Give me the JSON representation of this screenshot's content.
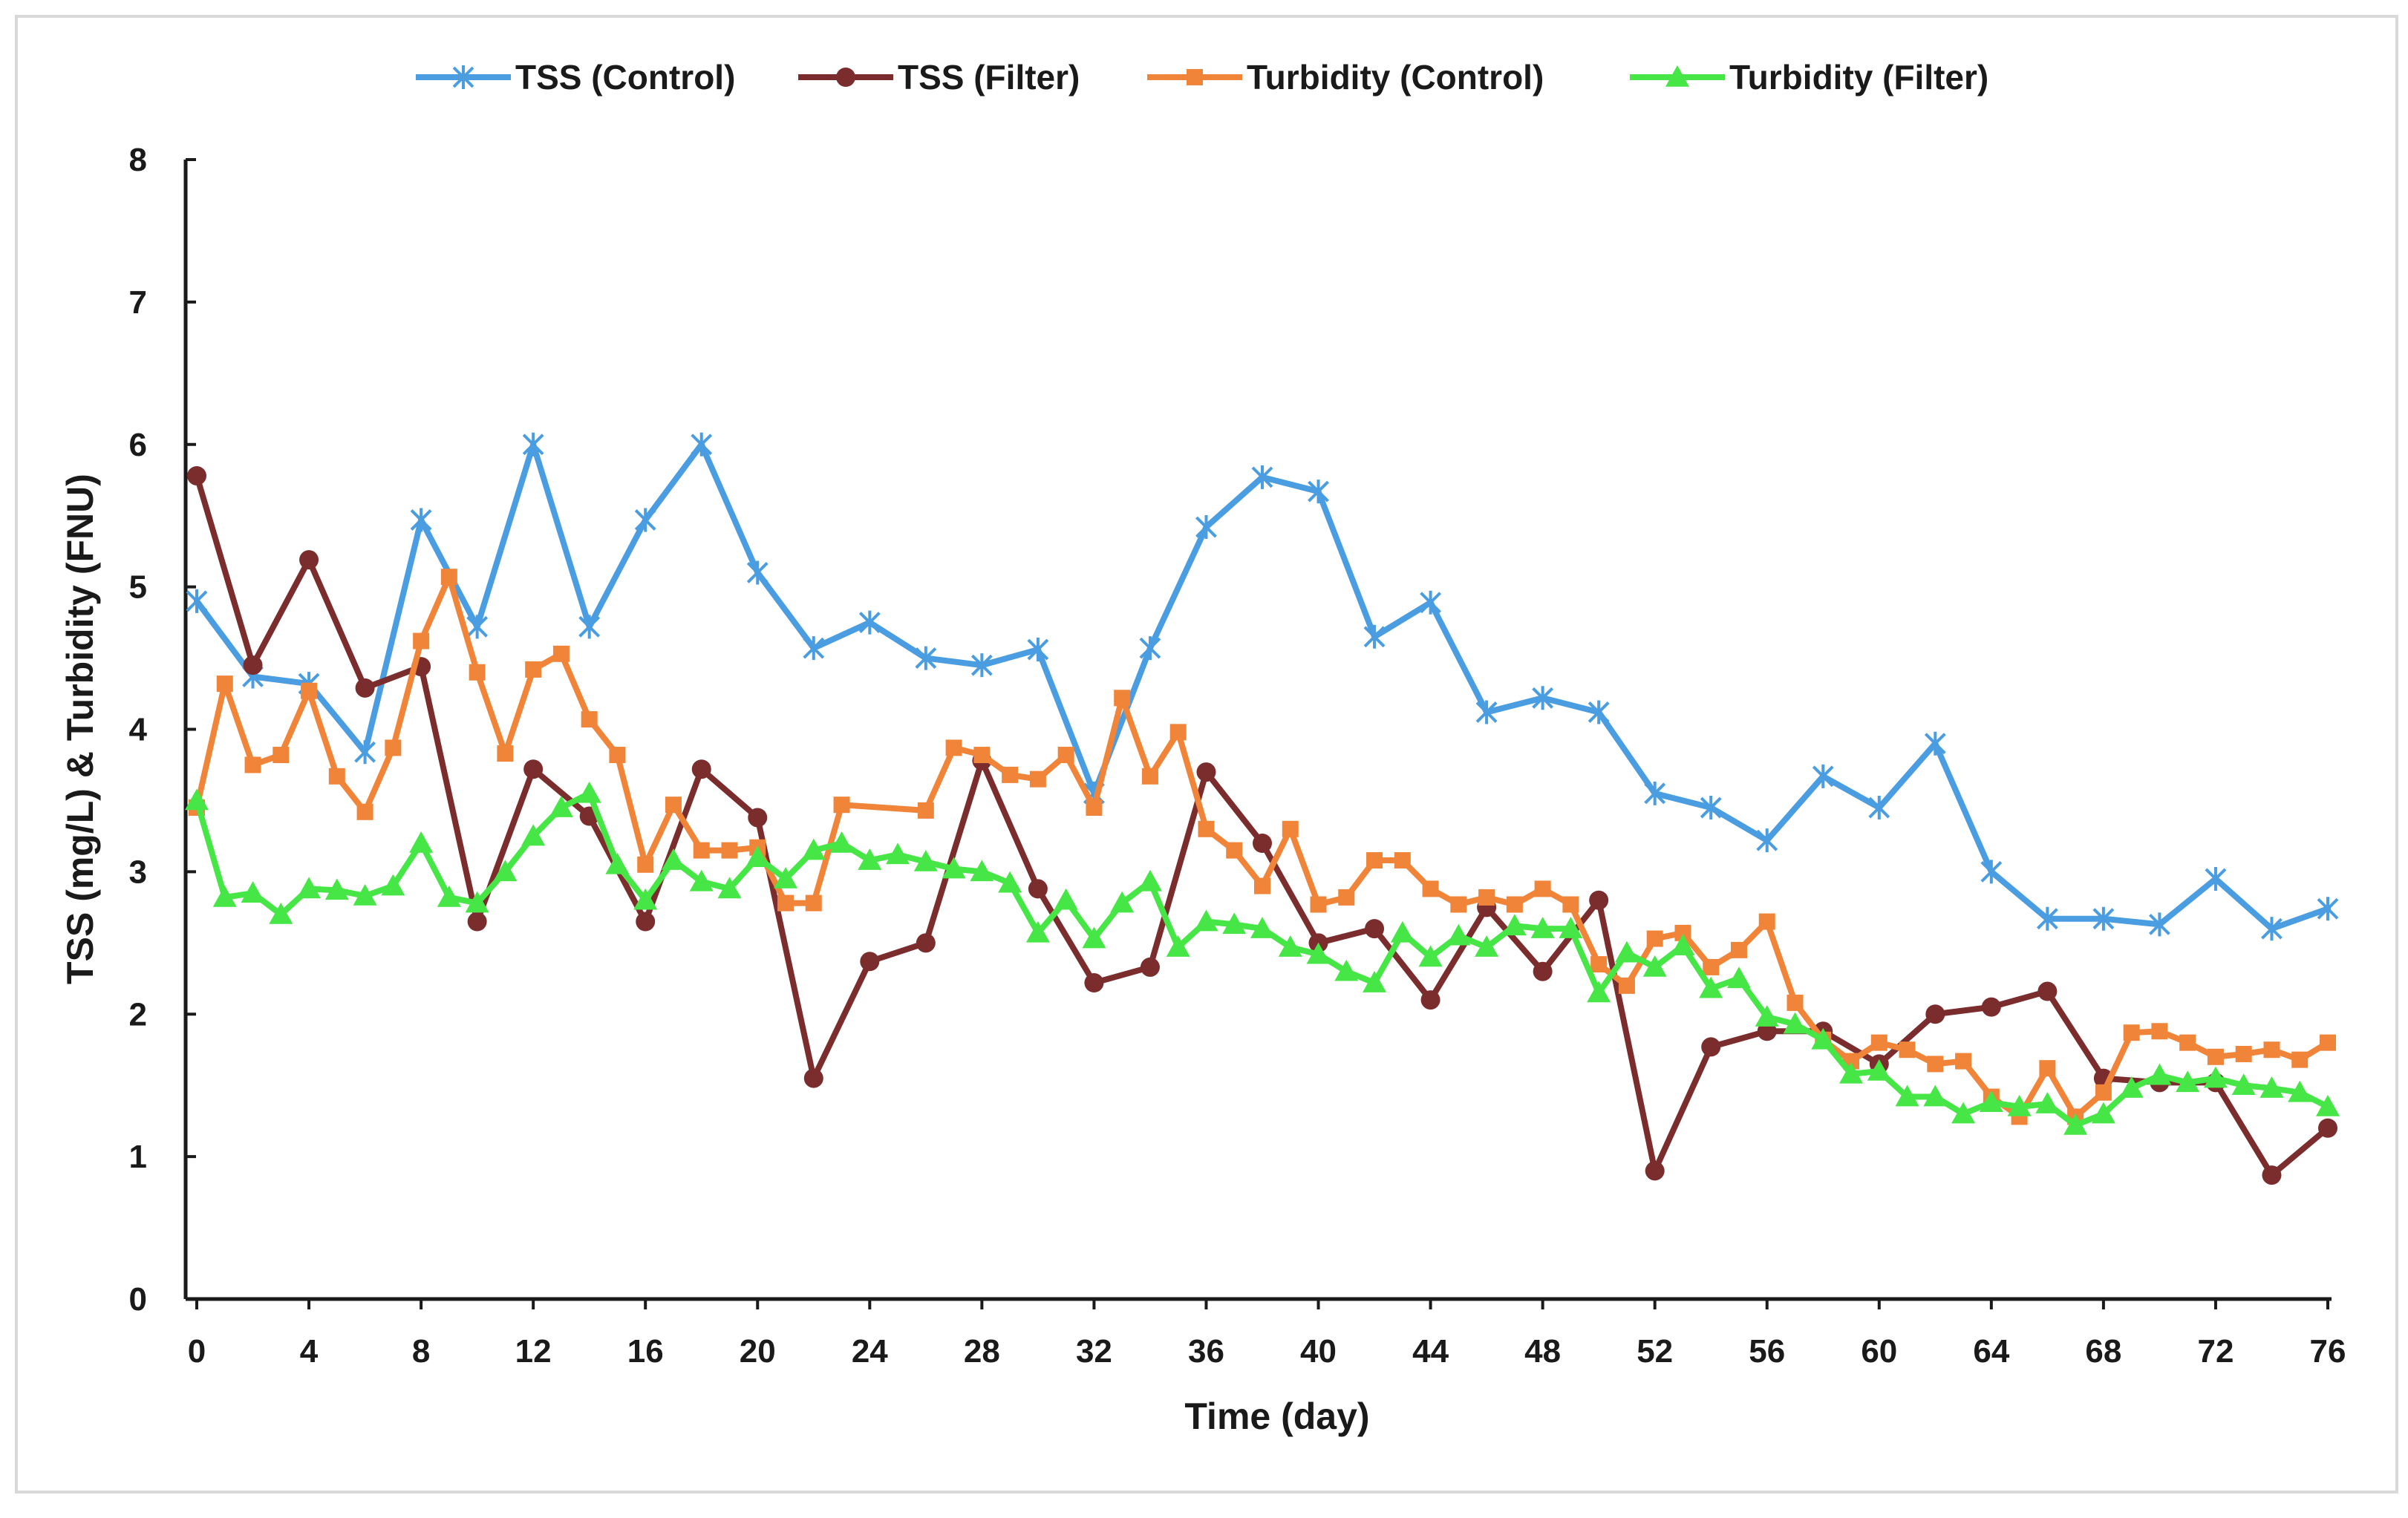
{
  "chart_data": {
    "type": "line",
    "title": "",
    "xlabel": "Time (day)",
    "ylabel": "TSS (mg/L) & Turbidity (FNU)",
    "xlim": [
      0,
      76
    ],
    "ylim": [
      0,
      8
    ],
    "x_ticks": [
      "0",
      "4",
      "8",
      "12",
      "16",
      "20",
      "24",
      "28",
      "32",
      "36",
      "40",
      "44",
      "48",
      "52",
      "56",
      "60",
      "64",
      "68",
      "72",
      "76"
    ],
    "y_ticks": [
      "0",
      "1",
      "2",
      "3",
      "4",
      "5",
      "6",
      "7",
      "8"
    ],
    "grid": false,
    "legend_position": "top-center",
    "series": [
      {
        "name": "TSS (Control)",
        "color": "#4A9DE0",
        "marker": "asterisk",
        "x": [
          0,
          2,
          4,
          6,
          8,
          10,
          12,
          14,
          16,
          18,
          20,
          22,
          24,
          26,
          28,
          30,
          32,
          34,
          36,
          38,
          40,
          42,
          44,
          46,
          48,
          50,
          52,
          54,
          56,
          58,
          60,
          62,
          64,
          66,
          68,
          70,
          72,
          74,
          76
        ],
        "y": [
          4.9,
          4.37,
          4.32,
          3.84,
          5.47,
          4.72,
          6.0,
          4.72,
          5.47,
          6.0,
          5.1,
          4.57,
          4.75,
          4.5,
          4.45,
          4.56,
          3.55,
          4.57,
          5.42,
          5.77,
          5.67,
          4.65,
          4.89,
          4.12,
          4.22,
          4.12,
          3.55,
          3.45,
          3.22,
          3.67,
          3.45,
          3.9,
          3.0,
          2.67,
          2.67,
          2.63,
          2.95,
          2.6,
          2.74
        ]
      },
      {
        "name": "TSS (Filter)",
        "color": "#7B2D2D",
        "marker": "circle",
        "x": [
          0,
          2,
          4,
          6,
          8,
          10,
          12,
          14,
          16,
          18,
          20,
          22,
          24,
          26,
          28,
          30,
          32,
          34,
          36,
          38,
          40,
          42,
          44,
          46,
          48,
          50,
          52,
          54,
          56,
          58,
          60,
          62,
          64,
          66,
          68,
          70,
          72,
          74,
          76
        ],
        "y": [
          5.78,
          4.45,
          5.19,
          4.29,
          4.44,
          2.65,
          3.72,
          3.39,
          2.65,
          3.72,
          3.38,
          1.55,
          2.37,
          2.5,
          3.78,
          2.88,
          2.22,
          2.33,
          3.7,
          3.2,
          2.5,
          2.6,
          2.1,
          2.75,
          2.3,
          2.8,
          0.9,
          1.77,
          1.88,
          1.88,
          1.65,
          2.0,
          2.05,
          2.16,
          1.55,
          1.52,
          1.52,
          0.87,
          1.2
        ]
      },
      {
        "name": "Turbidity (Control)",
        "color": "#F0853A",
        "marker": "square",
        "x": [
          0,
          1,
          2,
          3,
          4,
          5,
          6,
          7,
          8,
          9,
          10,
          11,
          12,
          13,
          14,
          15,
          16,
          17,
          18,
          19,
          20,
          21,
          22,
          23,
          26,
          27,
          28,
          29,
          30,
          31,
          32,
          33,
          34,
          35,
          36,
          37,
          38,
          39,
          40,
          41,
          42,
          43,
          44,
          45,
          46,
          47,
          48,
          49,
          50,
          51,
          52,
          53,
          54,
          55,
          56,
          57,
          58,
          59,
          60,
          61,
          62,
          63,
          64,
          65,
          66,
          67,
          68,
          69,
          70,
          71,
          72,
          73,
          74,
          75,
          76
        ],
        "y": [
          3.45,
          4.32,
          3.75,
          3.82,
          4.27,
          3.67,
          3.42,
          3.87,
          4.62,
          5.07,
          4.4,
          3.83,
          4.42,
          4.53,
          4.07,
          3.82,
          3.05,
          3.47,
          3.15,
          3.15,
          3.17,
          2.78,
          2.78,
          3.47,
          3.43,
          3.87,
          3.82,
          3.68,
          3.65,
          3.82,
          3.45,
          4.22,
          3.67,
          3.98,
          3.3,
          3.15,
          2.9,
          3.3,
          2.77,
          2.82,
          3.08,
          3.08,
          2.88,
          2.77,
          2.82,
          2.77,
          2.88,
          2.77,
          2.35,
          2.2,
          2.53,
          2.57,
          2.33,
          2.45,
          2.65,
          2.08,
          1.82,
          1.67,
          1.8,
          1.75,
          1.65,
          1.67,
          1.42,
          1.28,
          1.62,
          1.28,
          1.45,
          1.87,
          1.88,
          1.8,
          1.7,
          1.72,
          1.75,
          1.68,
          1.8
        ]
      },
      {
        "name": "Turbidity (Filter)",
        "color": "#47E647",
        "marker": "triangle",
        "x": [
          0,
          1,
          2,
          3,
          4,
          5,
          6,
          7,
          8,
          9,
          10,
          11,
          12,
          13,
          14,
          15,
          16,
          17,
          18,
          19,
          20,
          21,
          22,
          23,
          24,
          25,
          26,
          27,
          28,
          29,
          30,
          31,
          32,
          33,
          34,
          35,
          36,
          37,
          38,
          39,
          40,
          41,
          42,
          43,
          44,
          45,
          46,
          47,
          48,
          49,
          50,
          51,
          52,
          53,
          54,
          55,
          56,
          57,
          58,
          59,
          60,
          61,
          62,
          63,
          64,
          65,
          66,
          67,
          68,
          69,
          70,
          71,
          72,
          73,
          74,
          75,
          76
        ],
        "y": [
          3.5,
          2.82,
          2.85,
          2.7,
          2.88,
          2.87,
          2.83,
          2.9,
          3.2,
          2.82,
          2.78,
          3.0,
          3.25,
          3.45,
          3.55,
          3.05,
          2.8,
          3.08,
          2.93,
          2.88,
          3.1,
          2.95,
          3.15,
          3.2,
          3.08,
          3.12,
          3.07,
          3.02,
          3.0,
          2.92,
          2.57,
          2.8,
          2.53,
          2.78,
          2.93,
          2.47,
          2.65,
          2.63,
          2.6,
          2.47,
          2.42,
          2.3,
          2.22,
          2.57,
          2.4,
          2.55,
          2.47,
          2.62,
          2.6,
          2.6,
          2.15,
          2.43,
          2.33,
          2.48,
          2.18,
          2.25,
          1.98,
          1.93,
          1.82,
          1.58,
          1.6,
          1.42,
          1.42,
          1.3,
          1.38,
          1.35,
          1.37,
          1.22,
          1.3,
          1.48,
          1.57,
          1.52,
          1.55,
          1.5,
          1.48,
          1.45,
          1.35
        ]
      }
    ]
  }
}
